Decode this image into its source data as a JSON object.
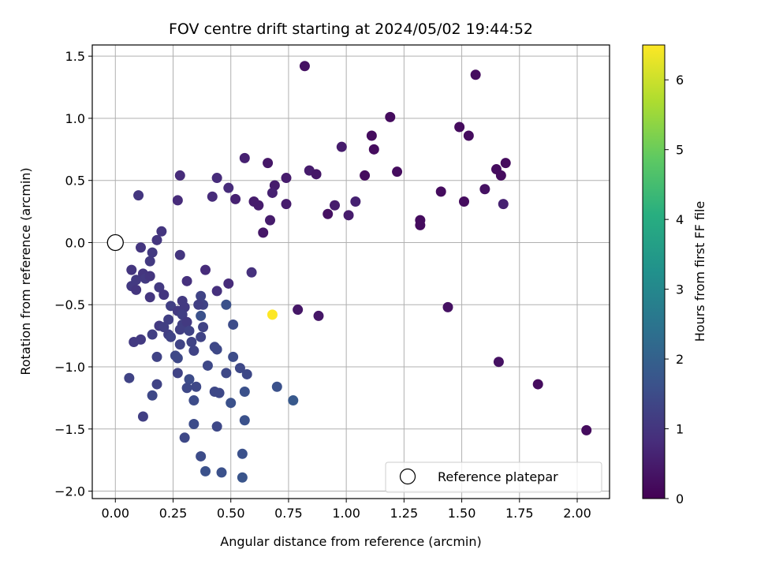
{
  "chart_data": {
    "type": "scatter",
    "title": "FOV centre drift starting at 2024/05/02 19:44:52",
    "xlabel": "Angular distance from reference (arcmin)",
    "ylabel": "Rotation from reference (arcmin)",
    "xlim": [
      -0.1,
      2.14
    ],
    "ylim": [
      -2.06,
      1.59
    ],
    "xticks": [
      0.0,
      0.25,
      0.5,
      0.75,
      1.0,
      1.25,
      1.5,
      1.75,
      2.0
    ],
    "xtick_labels": [
      "0.00",
      "0.25",
      "0.50",
      "0.75",
      "1.00",
      "1.25",
      "1.50",
      "1.75",
      "2.00"
    ],
    "yticks": [
      -2.0,
      -1.5,
      -1.0,
      -0.5,
      0.0,
      0.5,
      1.0,
      1.5
    ],
    "ytick_labels": [
      "−2.0",
      "−1.5",
      "−1.0",
      "−0.5",
      "0.0",
      "0.5",
      "1.0",
      "1.5"
    ],
    "grid": true,
    "legend": {
      "placement": "lower-right",
      "entries": [
        "Reference platepar"
      ]
    },
    "reference_point": {
      "x": 0.0,
      "y": 0.0,
      "label": "Reference platepar"
    },
    "colorbar": {
      "label": "Hours from first FF file",
      "colormap": "viridis",
      "range": [
        0,
        6.5
      ],
      "ticks": [
        0,
        1,
        2,
        3,
        4,
        5,
        6
      ],
      "tick_labels": [
        "0",
        "1",
        "2",
        "3",
        "4",
        "5",
        "6"
      ]
    },
    "series": [
      {
        "points": [
          [
            0.82,
            1.42,
            0.3
          ],
          [
            1.56,
            1.35,
            0.2
          ],
          [
            1.19,
            1.01,
            0.2
          ],
          [
            1.49,
            0.93,
            0.2
          ],
          [
            1.53,
            0.86,
            0.2
          ],
          [
            1.11,
            0.86,
            0.2
          ],
          [
            1.12,
            0.75,
            0.2
          ],
          [
            0.98,
            0.77,
            0.5
          ],
          [
            1.69,
            0.64,
            0.2
          ],
          [
            1.65,
            0.59,
            0.2
          ],
          [
            1.67,
            0.54,
            0.2
          ],
          [
            1.22,
            0.57,
            0.2
          ],
          [
            1.08,
            0.54,
            0.2
          ],
          [
            1.6,
            0.43,
            0.3
          ],
          [
            1.41,
            0.41,
            0.2
          ],
          [
            1.51,
            0.33,
            0.2
          ],
          [
            1.68,
            0.31,
            0.6
          ],
          [
            1.32,
            0.18,
            0.2
          ],
          [
            1.32,
            0.14,
            0.2
          ],
          [
            0.56,
            0.68,
            0.6
          ],
          [
            0.66,
            0.64,
            0.4
          ],
          [
            0.84,
            0.58,
            0.5
          ],
          [
            0.87,
            0.55,
            0.4
          ],
          [
            0.74,
            0.52,
            0.5
          ],
          [
            0.69,
            0.46,
            0.5
          ],
          [
            0.68,
            0.4,
            0.6
          ],
          [
            0.6,
            0.33,
            0.5
          ],
          [
            0.62,
            0.3,
            0.5
          ],
          [
            0.74,
            0.31,
            0.5
          ],
          [
            0.67,
            0.18,
            0.5
          ],
          [
            0.64,
            0.08,
            0.4
          ],
          [
            0.95,
            0.3,
            0.5
          ],
          [
            0.92,
            0.23,
            0.3
          ],
          [
            1.04,
            0.33,
            0.6
          ],
          [
            1.01,
            0.22,
            0.5
          ],
          [
            0.28,
            0.54,
            0.8
          ],
          [
            0.44,
            0.52,
            0.8
          ],
          [
            0.49,
            0.44,
            0.8
          ],
          [
            0.42,
            0.37,
            0.8
          ],
          [
            0.52,
            0.35,
            0.6
          ],
          [
            0.27,
            0.34,
            0.8
          ],
          [
            0.1,
            0.38,
            1.0
          ],
          [
            0.2,
            0.09,
            1.0
          ],
          [
            0.18,
            0.02,
            1.0
          ],
          [
            0.11,
            -0.04,
            1.0
          ],
          [
            0.16,
            -0.08,
            1.1
          ],
          [
            0.15,
            -0.15,
            1.1
          ],
          [
            0.28,
            -0.1,
            1.0
          ],
          [
            0.07,
            -0.22,
            1.0
          ],
          [
            0.12,
            -0.25,
            1.0
          ],
          [
            0.13,
            -0.29,
            1.1
          ],
          [
            0.15,
            -0.27,
            1.0
          ],
          [
            0.09,
            -0.3,
            1.1
          ],
          [
            0.31,
            -0.31,
            0.9
          ],
          [
            0.39,
            -0.22,
            0.8
          ],
          [
            0.49,
            -0.33,
            0.8
          ],
          [
            0.59,
            -0.24,
            0.9
          ],
          [
            0.07,
            -0.35,
            1.1
          ],
          [
            0.09,
            -0.38,
            1.0
          ],
          [
            0.19,
            -0.36,
            1.1
          ],
          [
            0.21,
            -0.42,
            1.0
          ],
          [
            0.15,
            -0.44,
            1.0
          ],
          [
            0.44,
            -0.39,
            0.9
          ],
          [
            0.37,
            -0.43,
            1.3
          ],
          [
            0.24,
            -0.51,
            1.2
          ],
          [
            0.29,
            -0.47,
            1.1
          ],
          [
            0.3,
            -0.52,
            1.1
          ],
          [
            0.38,
            -0.5,
            1.3
          ],
          [
            0.36,
            -0.5,
            1.2
          ],
          [
            0.48,
            -0.5,
            1.6
          ],
          [
            0.27,
            -0.55,
            1.1
          ],
          [
            0.29,
            -0.58,
            1.2
          ],
          [
            0.37,
            -0.59,
            1.6
          ],
          [
            0.23,
            -0.62,
            1.2
          ],
          [
            0.19,
            -0.67,
            1.1
          ],
          [
            0.21,
            -0.68,
            1.2
          ],
          [
            0.29,
            -0.66,
            1.2
          ],
          [
            0.31,
            -0.64,
            1.1
          ],
          [
            0.38,
            -0.68,
            1.3
          ],
          [
            0.28,
            -0.7,
            1.2
          ],
          [
            0.32,
            -0.71,
            1.3
          ],
          [
            0.23,
            -0.74,
            1.2
          ],
          [
            0.16,
            -0.74,
            1.2
          ],
          [
            0.24,
            -0.76,
            1.3
          ],
          [
            0.33,
            -0.8,
            1.3
          ],
          [
            0.37,
            -0.76,
            1.3
          ],
          [
            0.28,
            -0.82,
            1.3
          ],
          [
            0.11,
            -0.78,
            1.1
          ],
          [
            0.08,
            -0.8,
            1.1
          ],
          [
            0.34,
            -0.87,
            1.3
          ],
          [
            0.43,
            -0.84,
            1.4
          ],
          [
            0.44,
            -0.86,
            1.4
          ],
          [
            0.26,
            -0.91,
            1.4
          ],
          [
            0.27,
            -0.93,
            1.4
          ],
          [
            0.18,
            -0.92,
            1.3
          ],
          [
            0.51,
            -0.66,
            1.5
          ],
          [
            0.51,
            -0.92,
            1.5
          ],
          [
            0.4,
            -0.99,
            1.4
          ],
          [
            0.54,
            -1.01,
            1.4
          ],
          [
            0.57,
            -1.06,
            1.4
          ],
          [
            0.48,
            -1.05,
            1.4
          ],
          [
            0.27,
            -1.05,
            1.3
          ],
          [
            0.32,
            -1.1,
            1.5
          ],
          [
            0.31,
            -1.17,
            1.4
          ],
          [
            0.35,
            -1.16,
            1.4
          ],
          [
            0.43,
            -1.2,
            1.4
          ],
          [
            0.45,
            -1.21,
            1.4
          ],
          [
            0.56,
            -1.2,
            1.6
          ],
          [
            0.7,
            -1.16,
            1.6
          ],
          [
            0.34,
            -1.27,
            1.5
          ],
          [
            0.5,
            -1.29,
            1.6
          ],
          [
            0.77,
            -1.27,
            1.8
          ],
          [
            0.06,
            -1.09,
            1.3
          ],
          [
            0.18,
            -1.14,
            1.3
          ],
          [
            0.16,
            -1.23,
            1.4
          ],
          [
            0.12,
            -1.4,
            1.2
          ],
          [
            0.34,
            -1.46,
            1.5
          ],
          [
            0.44,
            -1.48,
            1.4
          ],
          [
            0.56,
            -1.43,
            1.6
          ],
          [
            0.3,
            -1.57,
            1.4
          ],
          [
            0.37,
            -1.72,
            1.5
          ],
          [
            0.55,
            -1.7,
            1.6
          ],
          [
            0.39,
            -1.84,
            1.6
          ],
          [
            0.46,
            -1.85,
            1.6
          ],
          [
            0.55,
            -1.89,
            1.7
          ],
          [
            0.79,
            -0.54,
            0.4
          ],
          [
            0.88,
            -0.59,
            0.4
          ],
          [
            1.44,
            -0.52,
            0.3
          ],
          [
            1.66,
            -0.96,
            0.3
          ],
          [
            1.83,
            -1.14,
            0.2
          ],
          [
            2.04,
            -1.51,
            0.2
          ],
          [
            0.68,
            -0.58,
            6.5
          ]
        ]
      }
    ]
  },
  "colors": {
    "grid": "#b0b0b0",
    "spine": "#000000",
    "reference_marker_fill": "#ffffff",
    "reference_marker_edge": "#000000",
    "legend_border": "#cccccc"
  }
}
